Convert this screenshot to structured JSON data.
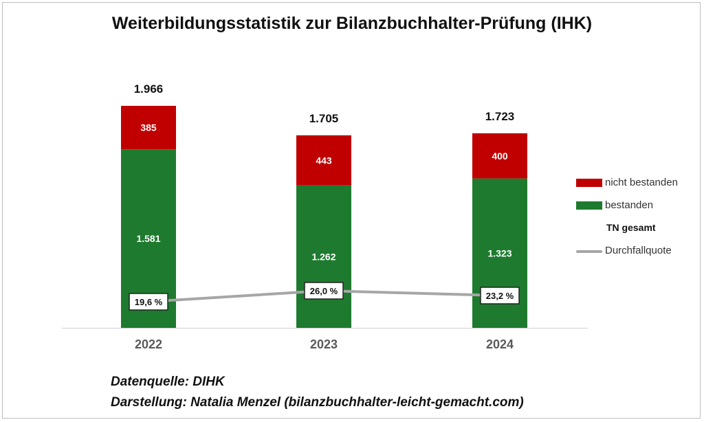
{
  "title": "Weiterbildungsstatistik zur Bilanzbuchhalter-Prüfung (IHK)",
  "colors": {
    "failed": "#c00000",
    "passed": "#1e7a2e",
    "rate": "#a6a6a6"
  },
  "legend": {
    "failed": "nicht bestanden",
    "passed": "bestanden",
    "total": "TN gesamt",
    "rate": "Durchfallquote"
  },
  "source": {
    "line1": "Datenquelle: DIHK",
    "line2": "Darstellung:  Natalia Menzel (bilanzbuchhalter-leicht-gemacht.com)"
  },
  "chart_data": {
    "type": "bar",
    "stacked": true,
    "categories": [
      "2022",
      "2023",
      "2024"
    ],
    "series": [
      {
        "name": "bestanden",
        "values": [
          1581,
          1262,
          1323
        ],
        "labels": [
          "1.581",
          "1.262",
          "1.323"
        ]
      },
      {
        "name": "nicht bestanden",
        "values": [
          385,
          443,
          400
        ],
        "labels": [
          "385",
          "443",
          "400"
        ]
      }
    ],
    "totals": {
      "name": "TN gesamt",
      "values": [
        1966,
        1705,
        1723
      ],
      "labels": [
        "1.966",
        "1.705",
        "1.723"
      ]
    },
    "rate": {
      "name": "Durchfallquote",
      "type": "line",
      "values": [
        19.6,
        26.0,
        23.2
      ],
      "labels": [
        "19,6 %",
        "26,0 %",
        "23,2 %"
      ]
    },
    "ylim": [
      0,
      2500
    ],
    "grid": false,
    "legend_position": "right"
  }
}
